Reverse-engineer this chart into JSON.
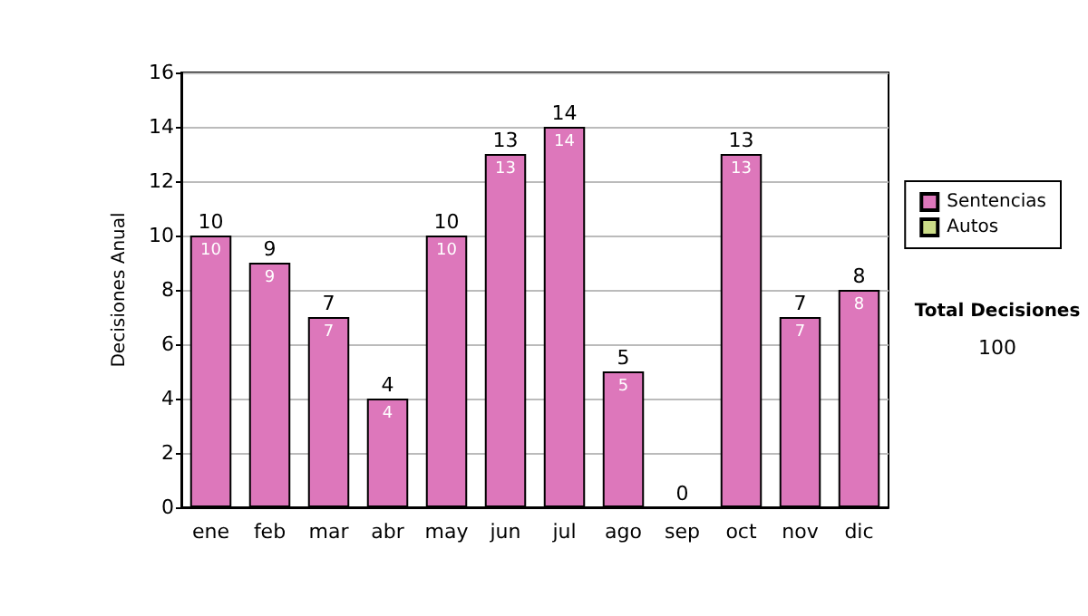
{
  "chart_data": {
    "type": "bar",
    "stacked": true,
    "ylabel": "Decisiones Anual",
    "categories": [
      "ene",
      "feb",
      "mar",
      "abr",
      "may",
      "jun",
      "jul",
      "ago",
      "sep",
      "oct",
      "nov",
      "dic"
    ],
    "series": [
      {
        "name": "Sentencias",
        "color": "#dd77bb",
        "values": [
          10,
          9,
          7,
          4,
          10,
          13,
          14,
          5,
          0,
          13,
          7,
          8
        ],
        "value_labels": [
          "10",
          "9",
          "7",
          "4",
          "10",
          "13",
          "14",
          "5",
          null,
          "13",
          "7",
          "8"
        ]
      },
      {
        "name": "Autos",
        "color": "#ccdd88",
        "values": [
          0,
          0,
          0,
          0,
          0,
          0,
          0,
          0,
          0,
          0,
          0,
          0
        ]
      }
    ],
    "totals": [
      "10",
      "9",
      "7",
      "4",
      "10",
      "13",
      "14",
      "5",
      "0",
      "13",
      "7",
      "8"
    ],
    "ylim": [
      0,
      16
    ],
    "yticks": [
      0,
      2,
      4,
      6,
      8,
      10,
      12,
      14,
      16
    ],
    "grid": "y",
    "legend": "right",
    "annotations": [
      "Total Decisiones",
      "100"
    ]
  }
}
